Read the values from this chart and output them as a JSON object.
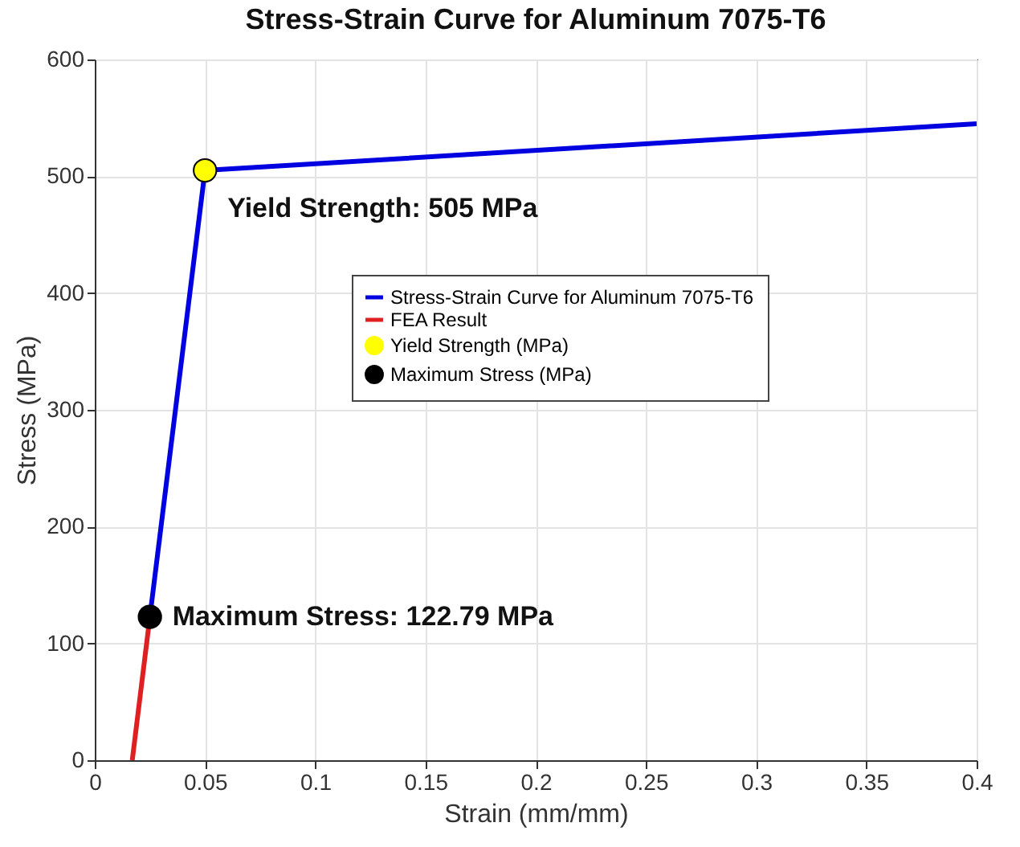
{
  "chart_data": {
    "type": "line",
    "title": "Stress-Strain Curve for Aluminum 7075-T6",
    "xlabel": "Strain (mm/mm)",
    "ylabel": "Stress (MPa)",
    "series": [
      {
        "name": "Stress-Strain Curve for Aluminum 7075-T6",
        "color": "#0000e0",
        "x": [
          0.025,
          0.05,
          0.4
        ],
        "values": [
          122.79,
          505,
          545
        ]
      },
      {
        "name": "FEA Result",
        "color": "#e02020",
        "x": [
          0.017,
          0.025
        ],
        "values": [
          0,
          122.79
        ]
      },
      {
        "name": "Yield Strength (MPa)",
        "type": "scatter",
        "color": "#ffff00",
        "x": [
          0.05
        ],
        "values": [
          505
        ]
      },
      {
        "name": "Maximum Stress (MPa)",
        "type": "scatter",
        "color": "#000000",
        "x": [
          0.025
        ],
        "values": [
          122.79
        ]
      }
    ],
    "annotations": [
      {
        "text": "Yield Strength: 505 MPa",
        "x": 0.05,
        "y": 505
      },
      {
        "text": "Maximum Stress: 122.79 MPa",
        "x": 0.025,
        "y": 122.79
      }
    ],
    "xlim": [
      0,
      0.4
    ],
    "xticks": [
      0,
      0.05,
      0.1,
      0.15,
      0.2,
      0.25,
      0.3,
      0.35,
      0.4
    ],
    "ylim": [
      0,
      600
    ],
    "yticks": [
      0,
      100,
      200,
      300,
      400,
      500,
      600
    ],
    "grid": true,
    "legend": "right",
    "line_style": "solid"
  }
}
